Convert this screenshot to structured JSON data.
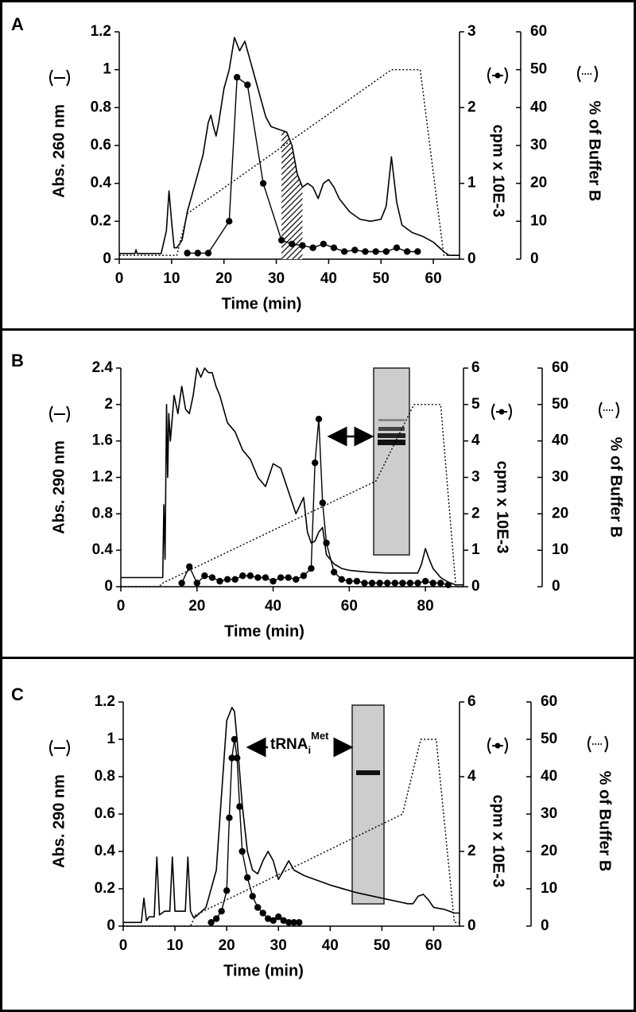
{
  "chart_data": [
    {
      "type": "line",
      "panel_label": "A",
      "xlabel": "Time (min)",
      "ylabel": "Abs. 260 nm",
      "y2label": "cpm x 10E-3",
      "y3label": "% of Buffer B",
      "xlim": [
        0,
        65
      ],
      "xticks": [
        0,
        10,
        20,
        30,
        40,
        50,
        60
      ],
      "ylim": [
        0,
        1.2
      ],
      "yticks": [
        0,
        0.2,
        0.4,
        0.6,
        0.8,
        1,
        1.2
      ],
      "y2lim": [
        0,
        3
      ],
      "y2ticks": [
        0,
        1,
        2,
        3
      ],
      "y3lim": [
        0,
        60
      ],
      "y3ticks": [
        0,
        10,
        20,
        30,
        40,
        50,
        60
      ],
      "hatch_x": [
        31,
        35
      ],
      "series": [
        {
          "axis": "y",
          "style": "solid",
          "color": "#000000",
          "x": [
            0,
            3,
            3.2,
            3.4,
            8,
            9,
            9.5,
            10,
            10.5,
            11,
            12,
            13,
            14,
            15,
            16,
            17,
            17.5,
            18,
            18.5,
            19,
            20,
            21,
            22,
            23,
            24,
            25,
            26,
            27,
            28,
            29,
            30,
            31,
            32,
            33,
            34,
            35,
            36,
            37,
            38,
            39,
            40,
            41,
            42,
            44,
            46,
            48,
            50,
            51,
            52,
            53,
            54,
            56,
            58,
            60,
            62,
            63,
            65
          ],
          "values": [
            0.03,
            0.03,
            0.05,
            0.03,
            0.03,
            0.15,
            0.36,
            0.2,
            0.06,
            0.06,
            0.1,
            0.25,
            0.35,
            0.45,
            0.55,
            0.72,
            0.76,
            0.7,
            0.65,
            0.72,
            0.9,
            1.0,
            1.17,
            1.1,
            1.15,
            1.05,
            0.95,
            0.85,
            0.75,
            0.7,
            0.69,
            0.68,
            0.67,
            0.6,
            0.45,
            0.38,
            0.4,
            0.38,
            0.32,
            0.4,
            0.42,
            0.38,
            0.32,
            0.25,
            0.21,
            0.2,
            0.21,
            0.28,
            0.54,
            0.3,
            0.18,
            0.14,
            0.12,
            0.09,
            0.04,
            0.02,
            0.02
          ]
        },
        {
          "axis": "y2",
          "style": "dots",
          "color": "#000000",
          "x": [
            13,
            15,
            17,
            21,
            22.5,
            24.5,
            27.5,
            31,
            33,
            35,
            37,
            39,
            41,
            43,
            45,
            47,
            49,
            51,
            53,
            55,
            57
          ],
          "values": [
            0.08,
            0.08,
            0.08,
            0.5,
            2.4,
            2.3,
            1.0,
            0.25,
            0.2,
            0.18,
            0.15,
            0.2,
            0.15,
            0.1,
            0.12,
            0.1,
            0.1,
            0.1,
            0.15,
            0.1,
            0.1
          ]
        },
        {
          "axis": "y3",
          "style": "dotted",
          "color": "#000000",
          "x": [
            0,
            11,
            13,
            52,
            57.5,
            62,
            65
          ],
          "values": [
            1,
            1,
            12,
            50,
            50,
            1,
            1
          ]
        }
      ]
    },
    {
      "type": "line",
      "panel_label": "B",
      "xlabel": "Time (min)",
      "ylabel": "Abs. 290 nm",
      "y2label": "cpm x 10E-3",
      "y3label": "% of Buffer B",
      "xlim": [
        0,
        90
      ],
      "xticks": [
        0,
        20,
        40,
        60,
        80
      ],
      "ylim": [
        0,
        2.4
      ],
      "yticks": [
        0,
        0.4,
        0.8,
        1.2,
        1.6,
        2,
        2.4
      ],
      "y2lim": [
        0,
        6
      ],
      "y2ticks": [
        0,
        1,
        2,
        3,
        4,
        5,
        6
      ],
      "y3lim": [
        0,
        60
      ],
      "y3ticks": [
        0,
        10,
        20,
        30,
        40,
        50,
        60
      ],
      "series": [
        {
          "axis": "y",
          "style": "solid",
          "color": "#000000",
          "x": [
            0,
            11,
            11.3,
            11.6,
            12,
            12.3,
            12.6,
            13,
            14,
            15,
            16,
            17,
            18,
            19,
            20,
            21,
            22,
            23,
            24,
            25,
            26,
            28,
            30,
            32,
            34,
            36,
            38,
            40,
            42,
            44,
            46,
            48,
            49,
            50,
            51,
            52,
            53,
            54,
            56,
            58,
            60,
            65,
            70,
            75,
            78,
            79,
            80,
            81,
            82,
            84,
            86,
            88,
            90
          ],
          "values": [
            0.1,
            0.1,
            0.9,
            0.3,
            2.0,
            1.2,
            1.9,
            1.6,
            2.1,
            1.9,
            2.2,
            1.95,
            1.9,
            2.1,
            2.4,
            2.3,
            2.4,
            2.35,
            2.35,
            2.2,
            2.1,
            1.8,
            1.7,
            1.5,
            1.4,
            1.2,
            1.1,
            1.35,
            1.3,
            1.05,
            0.8,
            0.98,
            0.6,
            0.48,
            0.5,
            0.6,
            0.65,
            0.35,
            0.25,
            0.2,
            0.18,
            0.16,
            0.15,
            0.15,
            0.15,
            0.25,
            0.42,
            0.3,
            0.2,
            0.1,
            0.05,
            0.02,
            0.02
          ]
        },
        {
          "axis": "y2",
          "style": "dots",
          "color": "#000000",
          "x": [
            16,
            18,
            20,
            22,
            24,
            26,
            28,
            30,
            32,
            34,
            36,
            38,
            40,
            42,
            44,
            46,
            48,
            50,
            51,
            52,
            53,
            54,
            56,
            58,
            60,
            62,
            64,
            66,
            68,
            70,
            72,
            74,
            76,
            78,
            80,
            82,
            84,
            86
          ],
          "values": [
            0.1,
            0.55,
            0.1,
            0.3,
            0.25,
            0.15,
            0.2,
            0.2,
            0.3,
            0.3,
            0.25,
            0.25,
            0.15,
            0.25,
            0.25,
            0.2,
            0.3,
            0.5,
            3.4,
            4.6,
            2.3,
            1.2,
            0.4,
            0.2,
            0.15,
            0.15,
            0.1,
            0.1,
            0.1,
            0.1,
            0.1,
            0.1,
            0.1,
            0.1,
            0.15,
            0.1,
            0.1,
            0.05
          ]
        },
        {
          "axis": "y3",
          "style": "dotted",
          "color": "#000000",
          "x": [
            0,
            10,
            11,
            67,
            77,
            84,
            88,
            90
          ],
          "values": [
            0,
            0,
            1,
            29,
            50,
            50,
            0,
            0
          ]
        }
      ]
    },
    {
      "type": "line",
      "panel_label": "C",
      "xlabel": "Time (min)",
      "ylabel": "Abs. 290 nm",
      "y2label": "cpm x 10E-3",
      "y3label": "% of Buffer B",
      "annotation": {
        "text": "tRNA",
        "sub": "i",
        "sup": "Met"
      },
      "xlim": [
        0,
        65
      ],
      "xticks": [
        0,
        10,
        20,
        30,
        40,
        50,
        60
      ],
      "ylim": [
        0,
        1.2
      ],
      "yticks": [
        0,
        0.2,
        0.4,
        0.6,
        0.8,
        1,
        1.2
      ],
      "y2lim": [
        0,
        6
      ],
      "y2ticks": [
        0,
        2,
        4,
        6
      ],
      "y3lim": [
        0,
        60
      ],
      "y3ticks": [
        0,
        10,
        20,
        30,
        40,
        50,
        60
      ],
      "series": [
        {
          "axis": "y",
          "style": "solid",
          "color": "#000000",
          "x": [
            0,
            3.5,
            4,
            4.5,
            5,
            6,
            6.5,
            7,
            8,
            9,
            9.5,
            10,
            11,
            12,
            12.5,
            13,
            13.5,
            14,
            16,
            18,
            19,
            20,
            21,
            21.5,
            22,
            23,
            24,
            25,
            26,
            27,
            28,
            29,
            30,
            31,
            32,
            33,
            35,
            40,
            45,
            50,
            55,
            56,
            57,
            58,
            59,
            60,
            62,
            64,
            65
          ],
          "values": [
            0.02,
            0.02,
            0.15,
            0.03,
            0.05,
            0.05,
            0.37,
            0.06,
            0.08,
            0.08,
            0.37,
            0.08,
            0.08,
            0.08,
            0.37,
            0.08,
            0.05,
            0.05,
            0.1,
            0.3,
            0.7,
            1.1,
            1.17,
            1.15,
            1.0,
            0.65,
            0.4,
            0.3,
            0.28,
            0.35,
            0.4,
            0.35,
            0.25,
            0.3,
            0.35,
            0.3,
            0.27,
            0.22,
            0.18,
            0.15,
            0.12,
            0.12,
            0.16,
            0.17,
            0.14,
            0.1,
            0.09,
            0.07,
            0.07
          ]
        },
        {
          "axis": "y2",
          "style": "dots",
          "color": "#000000",
          "x": [
            17,
            18,
            19,
            20,
            20.5,
            21,
            21.5,
            22,
            22.5,
            23,
            24,
            25,
            26,
            27,
            28,
            29,
            30,
            31,
            32,
            33,
            34
          ],
          "values": [
            0.1,
            0.2,
            0.4,
            0.95,
            2.9,
            4.5,
            5.0,
            4.5,
            3.2,
            2.0,
            1.3,
            0.8,
            0.5,
            0.35,
            0.2,
            0.15,
            0.25,
            0.15,
            0.1,
            0.1,
            0.1
          ]
        },
        {
          "axis": "y3",
          "style": "dotted",
          "color": "#000000",
          "x": [
            0,
            13,
            14,
            54,
            57.5,
            60.5,
            64,
            65
          ],
          "values": [
            0,
            0,
            3,
            30,
            50,
            50,
            1,
            1
          ]
        }
      ]
    }
  ]
}
